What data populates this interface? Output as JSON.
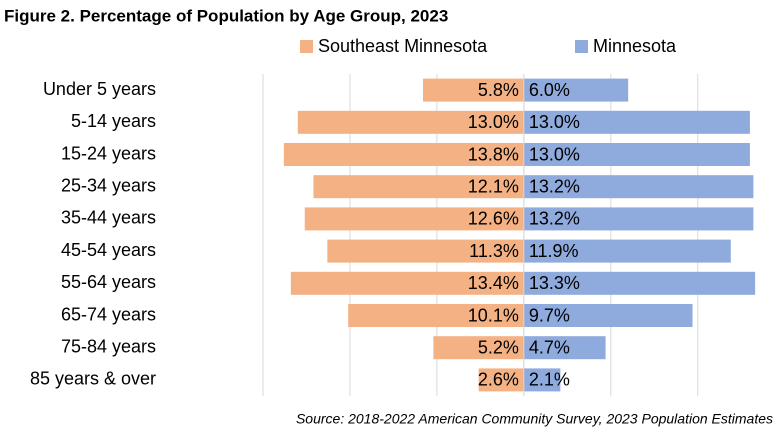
{
  "chart_data": {
    "type": "pyramid",
    "title": "Figure 2. Percentage of Population by Age Group, 2023",
    "source": "Source: 2018-2022 American Community Survey, 2023 Population Estimates",
    "categories": [
      "Under 5 years",
      "5-14 years",
      "15-24 years",
      "25-34 years",
      "35-44 years",
      "45-54 years",
      "55-64 years",
      "65-74 years",
      "75-84 years",
      "85 years & over"
    ],
    "series": [
      {
        "name": "Southeast Minnesota",
        "color": "#f4b183",
        "direction": "left",
        "values": [
          5.8,
          13.0,
          13.8,
          12.1,
          12.6,
          11.3,
          13.4,
          10.1,
          5.2,
          2.6
        ],
        "value_labels": [
          "5.8%",
          "13.0%",
          "13.8%",
          "12.1%",
          "12.6%",
          "11.3%",
          "13.4%",
          "10.1%",
          "5.2%",
          "2.6%"
        ]
      },
      {
        "name": "Minnesota",
        "color": "#8faadc",
        "direction": "right",
        "values": [
          6.0,
          13.0,
          13.0,
          13.2,
          13.2,
          11.9,
          13.3,
          9.7,
          4.7,
          2.1
        ],
        "value_labels": [
          "6.0%",
          "13.0%",
          "13.0%",
          "13.2%",
          "13.2%",
          "11.9%",
          "13.3%",
          "9.7%",
          "4.7%",
          "2.1%"
        ]
      }
    ],
    "xlim": [
      -15,
      14.5
    ],
    "xticks": [
      -15,
      -10,
      -5,
      0,
      5,
      10
    ],
    "grid": true
  }
}
